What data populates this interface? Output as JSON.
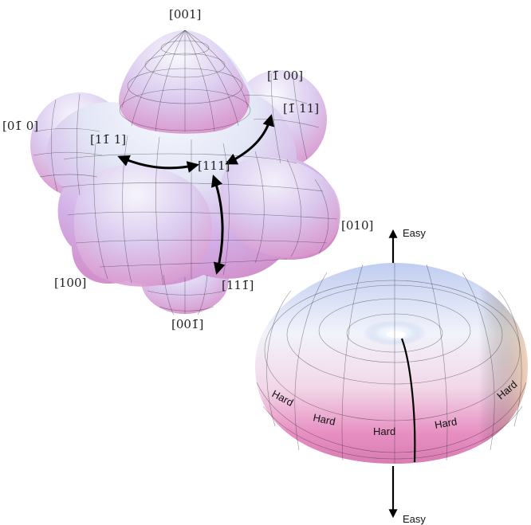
{
  "cubic_surface": {
    "direction_labels": [
      {
        "key": "001",
        "text": "[001]"
      },
      {
        "key": "m100",
        "text": "[1̄ 00]"
      },
      {
        "key": "m111",
        "text": "[1̄ 11]"
      },
      {
        "key": "0m10",
        "text": "[01̄ 0]"
      },
      {
        "key": "1m11",
        "text": "[11̄ 1]"
      },
      {
        "key": "111",
        "text": "[111]"
      },
      {
        "key": "010",
        "text": "[010]"
      },
      {
        "key": "100",
        "text": "[100]"
      },
      {
        "key": "11m1",
        "text": "[111̄]"
      },
      {
        "key": "00m1",
        "text": "[001̄]"
      }
    ]
  },
  "uniaxial_surface": {
    "axis_labels": {
      "top": "Easy",
      "bottom": "Easy"
    },
    "hard_labels": [
      "Hard",
      "Hard",
      "Hard",
      "Hard",
      "Hard"
    ]
  },
  "colors": {
    "surface_light": "#eaf2fb",
    "surface_blue": "#b9c8ec",
    "surface_violet": "#d7a6e6",
    "surface_pink": "#e489c0",
    "surface_peach": "#f4cfa6"
  }
}
